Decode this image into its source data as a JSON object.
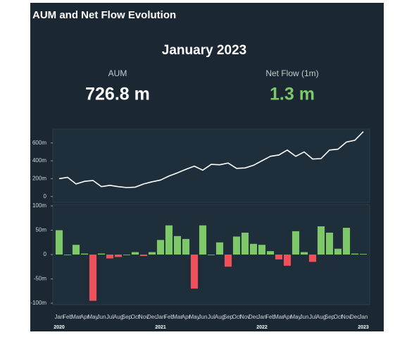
{
  "header": {
    "title": "AUM and Net Flow Evolution",
    "period": "January 2023",
    "kpis": [
      {
        "label": "AUM",
        "value": "726.8 m"
      },
      {
        "label": "Net Flow (1m)",
        "value": "1.3 m"
      }
    ]
  },
  "chart_data": [
    {
      "type": "line",
      "color": "#ffffff",
      "values": [
        200,
        215,
        140,
        170,
        180,
        110,
        125,
        110,
        100,
        105,
        140,
        165,
        185,
        230,
        265,
        305,
        340,
        295,
        360,
        355,
        375,
        315,
        320,
        350,
        400,
        450,
        465,
        520,
        450,
        500,
        420,
        425,
        520,
        530,
        610,
        630,
        726.8
      ],
      "ylim": [
        -50,
        740
      ],
      "yticks": [
        0,
        {
          "value": 200,
          "label": "200m"
        },
        {
          "value": 400,
          "label": "400m"
        },
        {
          "value": 600,
          "label": "600m"
        }
      ]
    },
    {
      "type": "bar",
      "positive_color": "#7ec86a",
      "negative_color": "#f0505a",
      "categories": [
        "Jan",
        "Feb",
        "Mar",
        "Apr",
        "May",
        "Jun",
        "Jul",
        "Aug",
        "Sep",
        "Oct",
        "Nov",
        "Dec",
        "Jan",
        "Feb",
        "Mar",
        "Apr",
        "May",
        "Jun",
        "Jul",
        "Aug",
        "Sep",
        "Oct",
        "Nov",
        "Dec",
        "Jan",
        "Feb",
        "Mar",
        "Apr",
        "May",
        "Jun",
        "Jul",
        "Aug",
        "Sep",
        "Oct",
        "Nov",
        "Dec",
        "Jan"
      ],
      "year_labels": [
        "2020",
        "2021",
        "2022",
        "2023"
      ],
      "values": [
        50,
        0,
        20,
        2,
        -95,
        2,
        -8,
        -5,
        0,
        5,
        -3,
        5,
        30,
        60,
        38,
        32,
        -70,
        60,
        0,
        25,
        -25,
        37,
        45,
        22,
        20,
        7,
        -10,
        -23,
        48,
        5,
        -15,
        58,
        45,
        12,
        55,
        2,
        1.3
      ],
      "ylim": [
        -100,
        100
      ],
      "yticks": [
        {
          "value": -100,
          "label": "-100m"
        },
        {
          "value": -50,
          "label": "-50m"
        },
        0,
        {
          "value": 50,
          "label": "50m"
        },
        {
          "value": 100,
          "label": "100m"
        }
      ]
    }
  ]
}
